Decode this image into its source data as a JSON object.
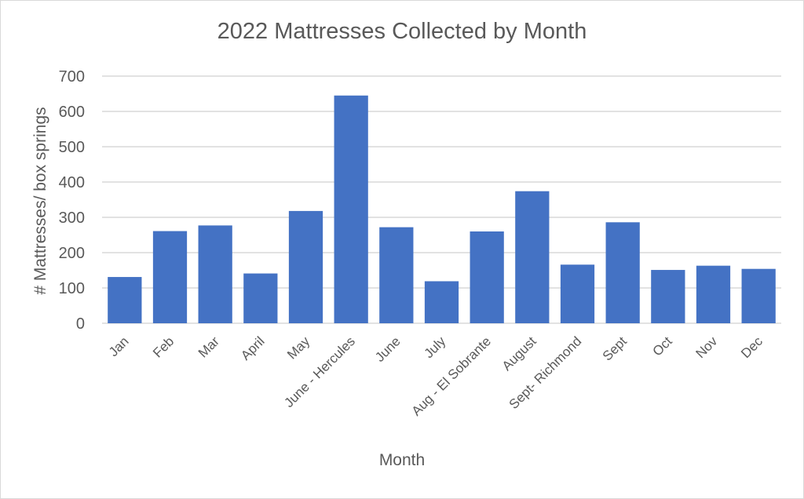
{
  "chart_data": {
    "type": "bar",
    "title": "2022 Mattresses Collected by Month",
    "xlabel": "Month",
    "ylabel": "# Mattresses/ box springs",
    "categories": [
      "Jan",
      "Feb",
      "Mar",
      "April",
      "May",
      "June - Hercules",
      "June",
      "July",
      "Aug - El Sobrante",
      "August",
      "Sept- Richmond",
      "Sept",
      "Oct",
      "Nov",
      "Dec"
    ],
    "values": [
      131,
      261,
      277,
      141,
      318,
      645,
      272,
      119,
      260,
      374,
      166,
      286,
      151,
      163,
      154
    ],
    "ylim": [
      0,
      700
    ],
    "yticks": [
      0,
      100,
      200,
      300,
      400,
      500,
      600,
      700
    ],
    "grid": true,
    "legend": "none",
    "bar_color": "#4472c4",
    "grid_color": "#d9d9d9"
  }
}
